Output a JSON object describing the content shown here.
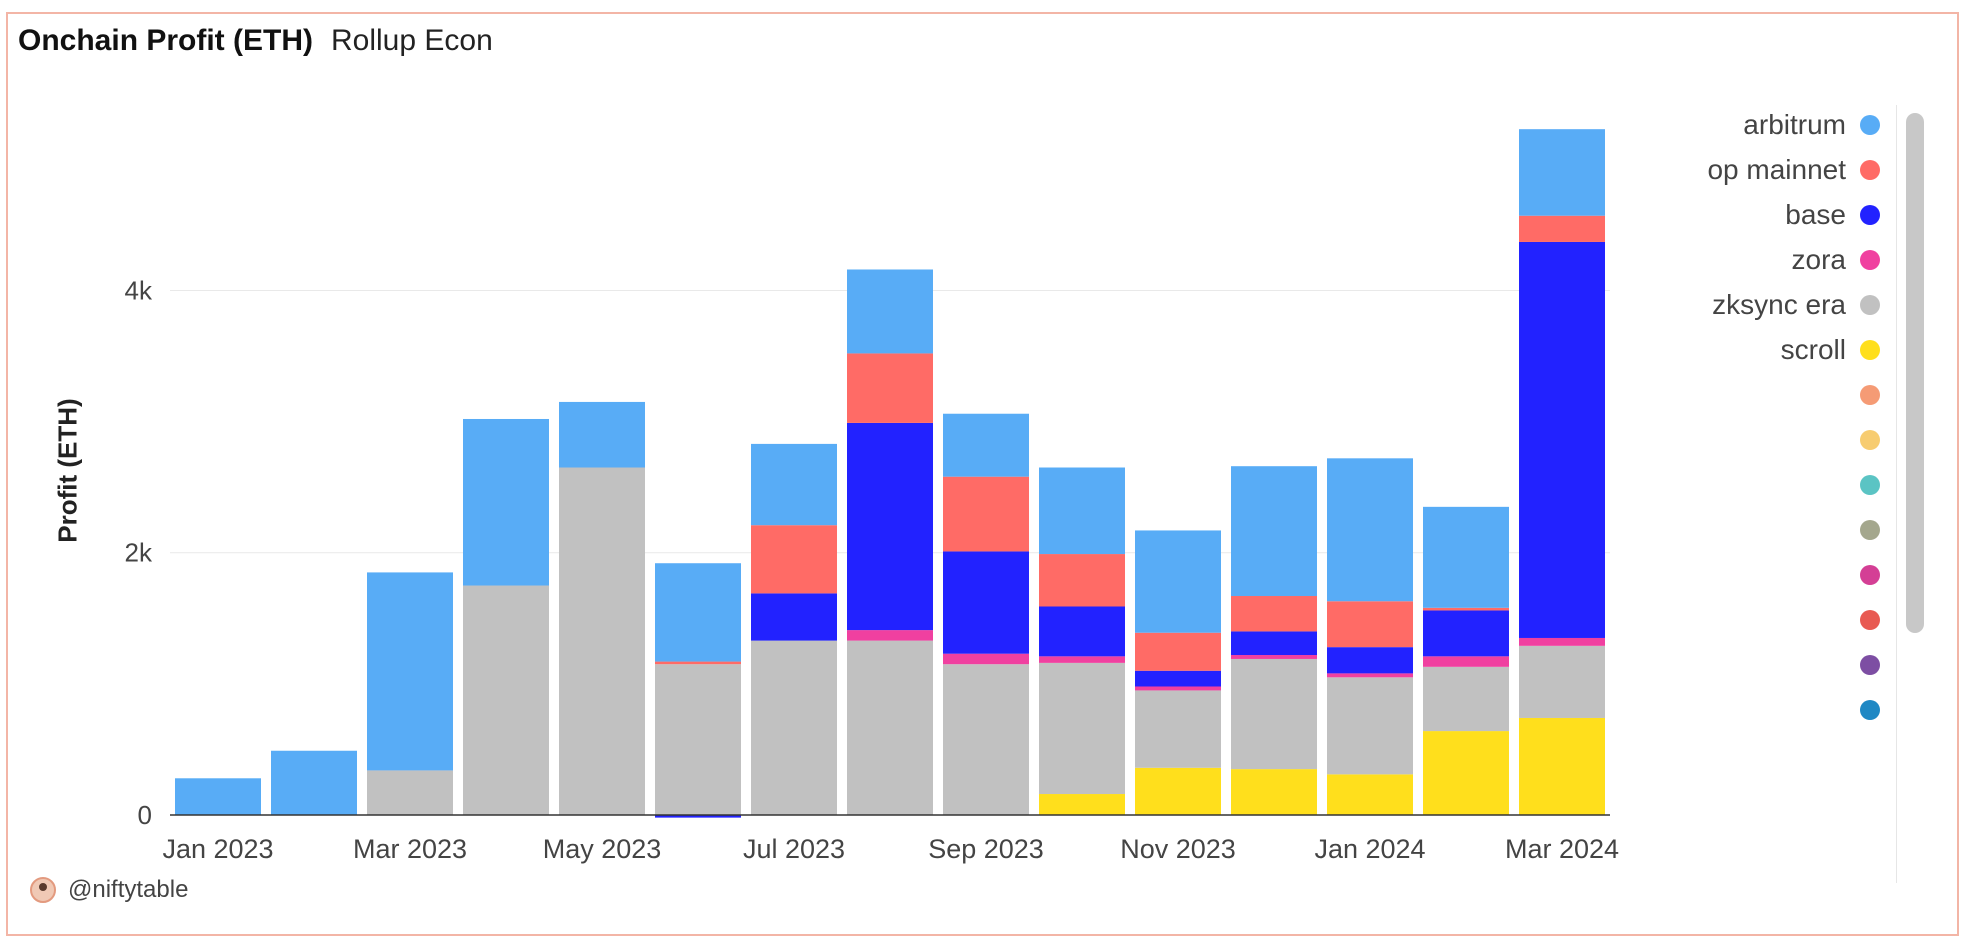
{
  "header": {
    "title": "Onchain Profit (ETH)",
    "subtitle": "Rollup Econ"
  },
  "attribution": {
    "handle": "@niftytable",
    "avatar_icon": "avatar-icon"
  },
  "legend": {
    "items": [
      {
        "label": "arbitrum",
        "color": "#58acf6"
      },
      {
        "label": "op mainnet",
        "color": "#ff6b66"
      },
      {
        "label": "base",
        "color": "#2222ff"
      },
      {
        "label": "zora",
        "color": "#f040a0"
      },
      {
        "label": "zksync era",
        "color": "#c1c1c1"
      },
      {
        "label": "scroll",
        "color": "#ffdf1c"
      },
      {
        "label": "",
        "color": "#f59b75"
      },
      {
        "label": "",
        "color": "#f7cc70"
      },
      {
        "label": "",
        "color": "#5bc4c4"
      },
      {
        "label": "",
        "color": "#a4a78d"
      },
      {
        "label": "",
        "color": "#d43f95"
      },
      {
        "label": "",
        "color": "#e85a52"
      },
      {
        "label": "",
        "color": "#7d4ea3"
      },
      {
        "label": "",
        "color": "#1f88c4"
      }
    ]
  },
  "chart_data": {
    "type": "bar",
    "stacked": true,
    "title": "Onchain Profit (ETH)",
    "ylabel": "Profit (ETH)",
    "xlabel": "",
    "ylim": [
      0,
      5300
    ],
    "yticks": [
      0,
      2000,
      4000
    ],
    "ytick_labels": [
      "0",
      "2k",
      "4k"
    ],
    "grid": true,
    "legend_position": "right",
    "categories": [
      "Jan 2023",
      "Feb 2023",
      "Mar 2023",
      "Apr 2023",
      "May 2023",
      "Jun 2023",
      "Jul 2023",
      "Aug 2023",
      "Sep 2023",
      "Oct 2023",
      "Nov 2023",
      "Dec 2023",
      "Jan 2024",
      "Feb 2024",
      "Mar 2024"
    ],
    "x_tick_labels": [
      "Jan 2023",
      "",
      "Mar 2023",
      "",
      "May 2023",
      "",
      "Jul 2023",
      "",
      "Sep 2023",
      "",
      "Nov 2023",
      "",
      "Jan 2024",
      "",
      "Mar 2024"
    ],
    "series": [
      {
        "name": "scroll",
        "color": "#ffdf1c",
        "values": [
          0,
          0,
          0,
          0,
          0,
          0,
          0,
          0,
          0,
          160,
          360,
          350,
          310,
          640,
          740
        ]
      },
      {
        "name": "zksync era",
        "color": "#c1c1c1",
        "values": [
          0,
          0,
          340,
          1750,
          2650,
          1150,
          1330,
          1330,
          1150,
          1000,
          590,
          840,
          740,
          490,
          550
        ]
      },
      {
        "name": "zora",
        "color": "#f040a0",
        "values": [
          0,
          0,
          0,
          0,
          0,
          0,
          0,
          80,
          80,
          50,
          30,
          30,
          30,
          80,
          60
        ]
      },
      {
        "name": "base",
        "color": "#2222ff",
        "values": [
          0,
          0,
          0,
          0,
          0,
          -20,
          360,
          1580,
          780,
          380,
          120,
          180,
          200,
          350,
          3020
        ]
      },
      {
        "name": "op mainnet",
        "color": "#ff6b66",
        "values": [
          0,
          0,
          0,
          0,
          0,
          20,
          520,
          530,
          570,
          400,
          290,
          270,
          350,
          20,
          200
        ]
      },
      {
        "name": "arbitrum",
        "color": "#58acf6",
        "values": [
          280,
          490,
          1510,
          1270,
          500,
          750,
          620,
          640,
          480,
          660,
          780,
          990,
          1090,
          770,
          660
        ]
      }
    ]
  }
}
